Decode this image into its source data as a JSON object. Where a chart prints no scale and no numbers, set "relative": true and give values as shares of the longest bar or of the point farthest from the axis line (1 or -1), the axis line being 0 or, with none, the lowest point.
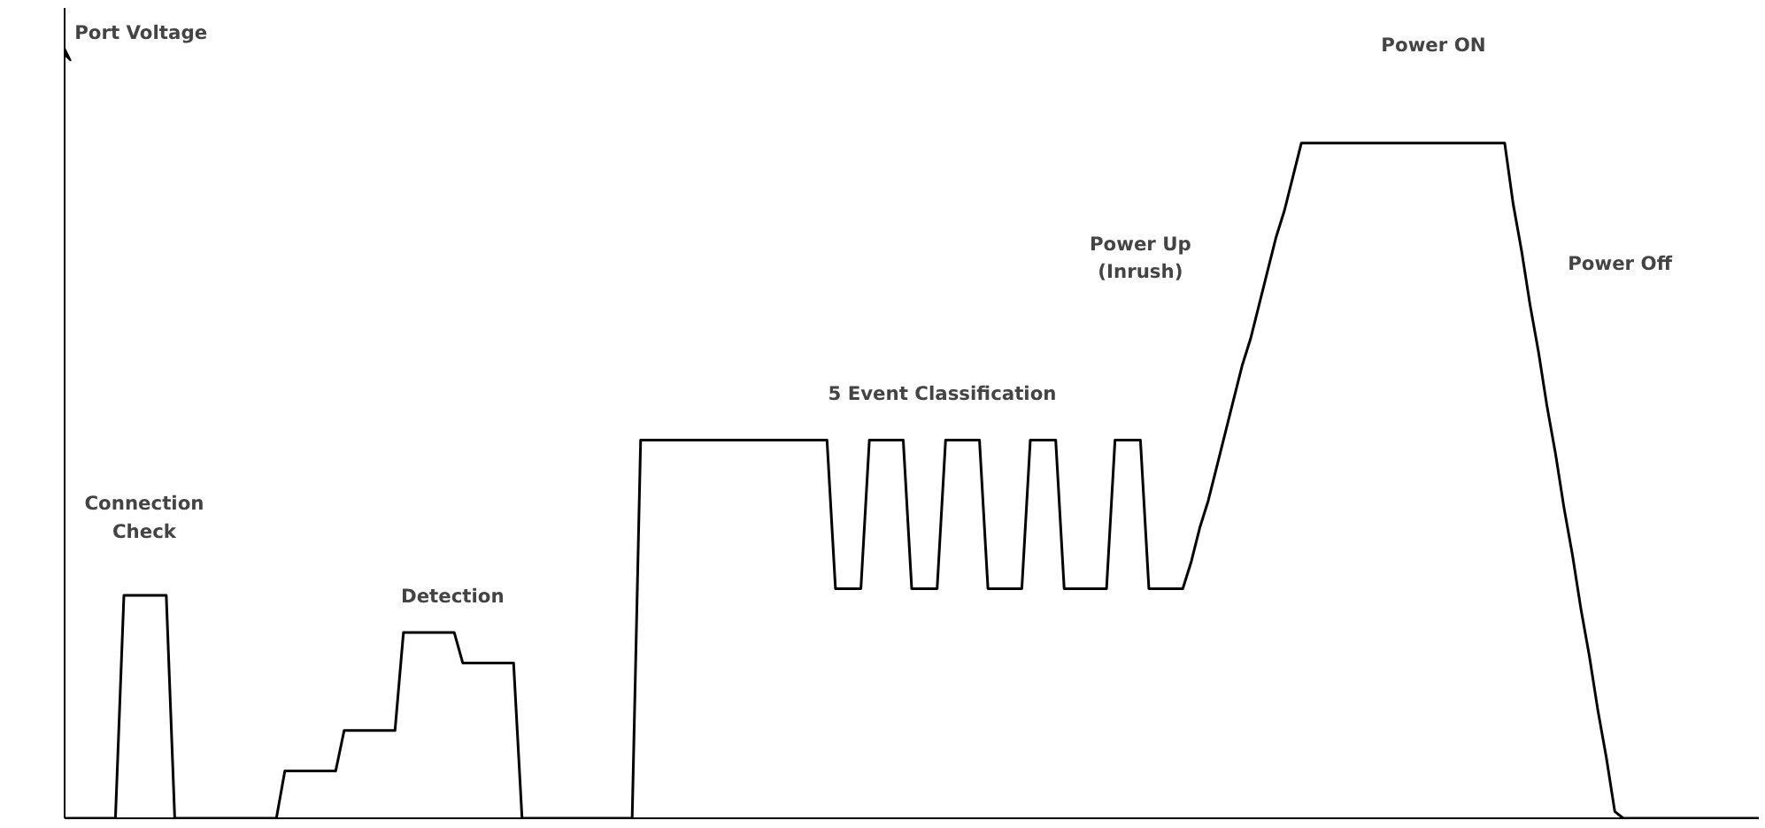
{
  "chart_data": {
    "type": "line",
    "relative": true,
    "tick_labels": false,
    "grid": false,
    "marker": "none",
    "line_style": "solid",
    "categories": [
      null,
      null,
      null,
      null,
      null,
      null,
      null,
      null,
      null,
      null,
      null,
      null,
      null,
      null,
      null,
      null,
      null,
      null,
      null,
      null,
      null,
      null,
      null,
      null,
      null,
      null,
      null,
      null,
      null,
      null,
      null,
      null,
      null,
      null,
      null,
      null,
      null,
      null,
      null,
      null,
      null,
      null,
      null,
      null,
      null,
      null,
      null,
      null,
      null,
      null,
      null,
      null,
      null,
      null,
      null,
      null,
      null,
      null,
      null,
      null,
      null,
      null,
      null,
      null,
      null,
      null,
      null,
      null,
      null,
      null,
      null,
      null,
      null,
      null,
      null,
      null,
      null,
      null,
      null,
      null,
      null,
      null,
      null,
      null,
      null,
      null,
      null,
      null,
      null,
      null,
      null,
      null,
      null,
      null,
      null,
      null,
      null,
      null,
      null,
      null,
      null,
      null,
      null,
      null,
      null,
      null,
      null,
      null,
      null,
      null,
      null,
      null,
      null,
      null,
      null,
      null,
      null,
      null,
      null,
      null,
      null,
      null,
      null,
      null,
      null,
      null,
      null,
      null,
      null,
      null,
      null,
      null,
      null,
      null,
      null,
      null,
      null,
      null,
      null,
      null,
      null,
      null,
      null,
      null,
      null,
      null,
      null,
      null,
      null,
      null,
      null,
      null,
      null,
      null,
      null,
      null,
      null,
      null,
      null,
      null,
      null,
      null,
      null,
      null,
      null,
      null,
      null,
      null,
      null,
      null,
      null,
      null,
      null,
      null,
      null,
      null,
      null,
      null,
      null,
      null,
      null,
      null,
      null,
      null,
      null,
      null,
      null,
      null,
      null,
      null,
      null,
      null,
      null,
      null,
      null,
      null,
      null,
      null,
      null,
      null,
      null
    ],
    "series": [
      {
        "color": "#000000",
        "values": [
          0,
          0,
          0,
          0,
          0,
          0,
          0,
          0.33,
          0.33,
          0.33,
          0.33,
          0.33,
          0.33,
          0,
          0,
          0,
          0,
          0,
          0,
          0,
          0,
          0,
          0,
          0,
          0,
          0,
          0.07,
          0.07,
          0.07,
          0.07,
          0.07,
          0.07,
          0.07,
          0.13,
          0.13,
          0.13,
          0.13,
          0.13,
          0.13,
          0.13,
          0.275,
          0.275,
          0.275,
          0.275,
          0.275,
          0.275,
          0.275,
          0.23,
          0.23,
          0.23,
          0.23,
          0.23,
          0.23,
          0.23,
          0,
          0,
          0,
          0,
          0,
          0,
          0,
          0,
          0,
          0,
          0,
          0,
          0,
          0,
          0.56,
          0.56,
          0.56,
          0.56,
          0.56,
          0.56,
          0.56,
          0.56,
          0.56,
          0.56,
          0.56,
          0.56,
          0.56,
          0.56,
          0.56,
          0.56,
          0.56,
          0.56,
          0.56,
          0.56,
          0.56,
          0.56,
          0.56,
          0.34,
          0.34,
          0.34,
          0.34,
          0.56,
          0.56,
          0.56,
          0.56,
          0.56,
          0.34,
          0.34,
          0.34,
          0.34,
          0.56,
          0.56,
          0.56,
          0.56,
          0.56,
          0.34,
          0.34,
          0.34,
          0.34,
          0.34,
          0.56,
          0.56,
          0.56,
          0.56,
          0.34,
          0.34,
          0.34,
          0.34,
          0.34,
          0.34,
          0.56,
          0.56,
          0.56,
          0.56,
          0.34,
          0.34,
          0.34,
          0.34,
          0.34,
          0.38,
          0.43,
          0.47,
          0.52,
          0.57,
          0.62,
          0.67,
          0.71,
          0.76,
          0.81,
          0.86,
          0.9,
          0.95,
          1,
          1,
          1,
          1,
          1,
          1,
          1,
          1,
          1,
          1,
          1,
          1,
          1,
          1,
          1,
          1,
          1,
          1,
          1,
          1,
          1,
          1,
          1,
          1,
          1,
          0.91,
          0.84,
          0.76,
          0.69,
          0.61,
          0.54,
          0.46,
          0.39,
          0.31,
          0.24,
          0.16,
          0.09,
          0.01,
          0,
          0,
          0,
          0,
          0,
          0,
          0,
          0,
          0,
          0,
          0,
          0,
          0,
          0,
          0,
          0,
          0
        ]
      }
    ],
    "annotations": [
      "Port Voltage",
      "Connection\nCheck",
      "Detection",
      "5 Event Classification",
      "Power Up\n(Inrush)",
      "Power ON",
      "Power Off"
    ]
  }
}
